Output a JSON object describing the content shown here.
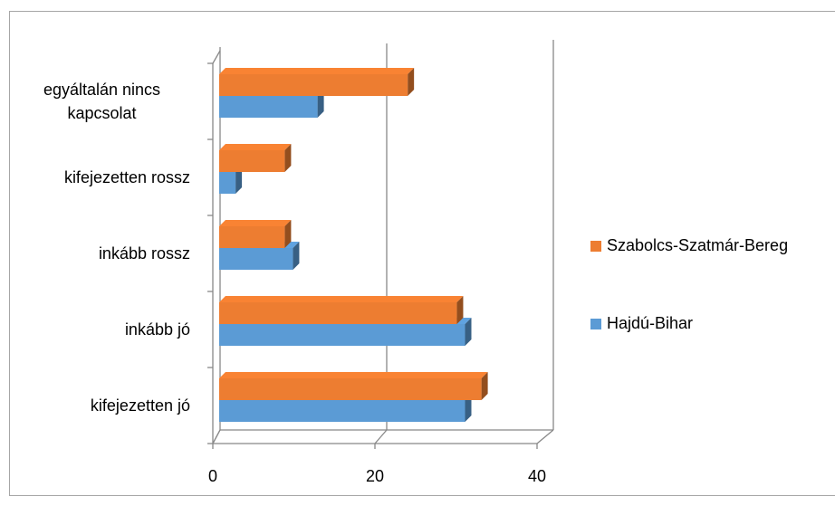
{
  "chart_data": {
    "type": "bar3d_horizontal",
    "categories": [
      "kifejezetten jó",
      "inkább jó",
      "inkább rossz",
      "kifejezetten rossz",
      "egyáltalán nincs kapcsolat"
    ],
    "series": [
      {
        "name": "Hajdú-Bihar",
        "color": "#5b9bd5",
        "values": [
          30,
          30,
          9,
          2,
          12
        ]
      },
      {
        "name": "Szabolcs-Szatmár-Bereg",
        "color": "#ed7d31",
        "values": [
          32,
          29,
          8,
          8,
          23
        ]
      }
    ],
    "xlim": [
      0,
      40
    ],
    "xticks": [
      0,
      20,
      40
    ],
    "grid": true,
    "legend": "right"
  }
}
